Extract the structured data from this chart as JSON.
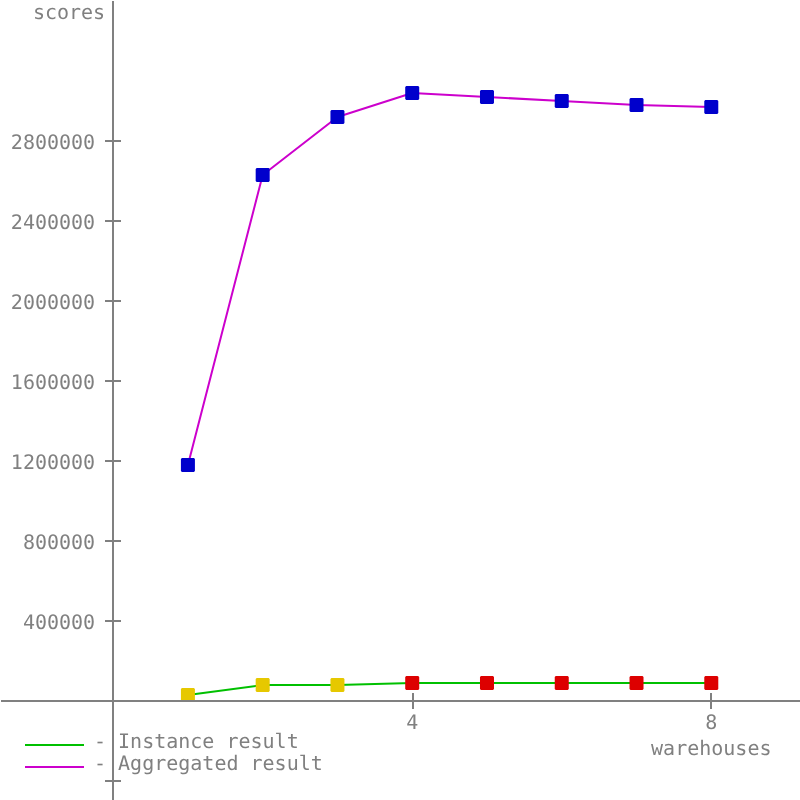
{
  "chart_data": {
    "type": "line",
    "xlabel": "warehouses",
    "ylabel": "scores",
    "x": [
      1,
      2,
      3,
      4,
      5,
      6,
      7,
      8
    ],
    "xlim": [
      -1.5,
      9.2
    ],
    "ylim": [
      -500000,
      3500000
    ],
    "xticks": [
      4,
      8
    ],
    "yticks": [
      {
        "value": -400000,
        "label": null
      },
      400000,
      800000,
      1200000,
      1600000,
      2000000,
      2400000,
      2800000
    ],
    "series": [
      {
        "name": "- Instance result",
        "color": "#00c000",
        "colors": [
          "#e6c800",
          "#e6c800",
          "#e6c800",
          "#dd0000",
          "#dd0000",
          "#dd0000",
          "#dd0000",
          "#dd0000"
        ],
        "values": [
          30000,
          80000,
          80000,
          90000,
          90000,
          90000,
          90000,
          90000
        ]
      },
      {
        "name": "- Aggregated result",
        "color": "#cc00cc",
        "colors": [
          "#0000cc",
          "#0000cc",
          "#0000cc",
          "#0000cc",
          "#0000cc",
          "#0000cc",
          "#0000cc",
          "#0000cc"
        ],
        "values": [
          1180000,
          2630000,
          2920000,
          3040000,
          3020000,
          3000000,
          2980000,
          2970000
        ]
      }
    ],
    "marker": "square",
    "grid": false,
    "legend": "bottom left"
  }
}
